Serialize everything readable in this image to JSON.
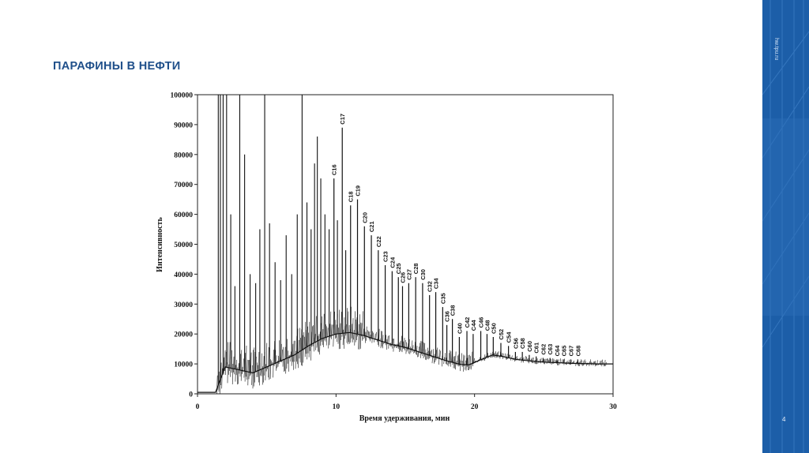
{
  "slide": {
    "title": "ПАРАФИНЫ В НЕФТИ",
    "site": "hw.tpu.ru",
    "page_number": "4",
    "accent_color": "#1c5ea8",
    "title_color": "#1f4f8a"
  },
  "chart_data": {
    "type": "line",
    "title": "",
    "xlabel": "Время удерживания, мин",
    "ylabel": "Интенсивность",
    "xlim": [
      0,
      30
    ],
    "ylim": [
      0,
      100000
    ],
    "x_ticks": [
      "0",
      "10",
      "20",
      "30"
    ],
    "y_ticks": [
      "0",
      "10000",
      "20000",
      "30000",
      "40000",
      "50000",
      "60000",
      "70000",
      "80000",
      "90000",
      "100000"
    ],
    "grid": false,
    "line_color": "#111111",
    "baseline": [
      {
        "x": 0,
        "y": 500
      },
      {
        "x": 1.3,
        "y": 500
      },
      {
        "x": 2,
        "y": 9000
      },
      {
        "x": 3,
        "y": 8000
      },
      {
        "x": 4,
        "y": 7000
      },
      {
        "x": 5,
        "y": 9000
      },
      {
        "x": 6,
        "y": 11000
      },
      {
        "x": 7,
        "y": 13000
      },
      {
        "x": 8,
        "y": 16000
      },
      {
        "x": 9,
        "y": 18500
      },
      {
        "x": 10,
        "y": 20000
      },
      {
        "x": 11,
        "y": 20500
      },
      {
        "x": 12,
        "y": 19500
      },
      {
        "x": 13,
        "y": 18000
      },
      {
        "x": 14,
        "y": 16500
      },
      {
        "x": 15,
        "y": 15500
      },
      {
        "x": 16,
        "y": 14000
      },
      {
        "x": 17,
        "y": 12500
      },
      {
        "x": 18,
        "y": 11000
      },
      {
        "x": 19,
        "y": 9800
      },
      {
        "x": 19.6,
        "y": 9700
      },
      {
        "x": 20.5,
        "y": 11500
      },
      {
        "x": 21.3,
        "y": 13000
      },
      {
        "x": 22,
        "y": 12500
      },
      {
        "x": 23,
        "y": 11500
      },
      {
        "x": 24,
        "y": 11000
      },
      {
        "x": 25,
        "y": 10600
      },
      {
        "x": 26,
        "y": 10400
      },
      {
        "x": 27,
        "y": 10200
      },
      {
        "x": 28,
        "y": 10100
      },
      {
        "x": 29,
        "y": 10000
      },
      {
        "x": 30,
        "y": 10000
      }
    ],
    "unlabeled_peaks": [
      {
        "x": 1.5,
        "y": 100000
      },
      {
        "x": 1.65,
        "y": 100000
      },
      {
        "x": 1.85,
        "y": 100000
      },
      {
        "x": 2.1,
        "y": 100000
      },
      {
        "x": 2.4,
        "y": 60000
      },
      {
        "x": 2.7,
        "y": 36000
      },
      {
        "x": 3.05,
        "y": 100000
      },
      {
        "x": 3.4,
        "y": 80000
      },
      {
        "x": 3.8,
        "y": 40000
      },
      {
        "x": 4.2,
        "y": 37000
      },
      {
        "x": 4.5,
        "y": 55000
      },
      {
        "x": 4.85,
        "y": 100000
      },
      {
        "x": 5.2,
        "y": 57000
      },
      {
        "x": 5.6,
        "y": 44000
      },
      {
        "x": 6.0,
        "y": 38000
      },
      {
        "x": 6.4,
        "y": 53000
      },
      {
        "x": 6.8,
        "y": 40000
      },
      {
        "x": 7.2,
        "y": 60000
      },
      {
        "x": 7.55,
        "y": 100000
      },
      {
        "x": 7.9,
        "y": 64000
      },
      {
        "x": 8.2,
        "y": 55000
      },
      {
        "x": 8.45,
        "y": 77000
      },
      {
        "x": 8.65,
        "y": 86000
      },
      {
        "x": 8.9,
        "y": 72000
      },
      {
        "x": 9.2,
        "y": 60000
      },
      {
        "x": 9.5,
        "y": 55000
      },
      {
        "x": 10.1,
        "y": 58000
      },
      {
        "x": 10.7,
        "y": 48000
      }
    ],
    "labeled_peaks": [
      {
        "label": "C16",
        "x": 9.85,
        "y": 72000
      },
      {
        "label": "C17",
        "x": 10.45,
        "y": 89000
      },
      {
        "label": "C18",
        "x": 11.05,
        "y": 63000
      },
      {
        "label": "C19",
        "x": 11.55,
        "y": 65000
      },
      {
        "label": "C20",
        "x": 12.05,
        "y": 56000
      },
      {
        "label": "C21",
        "x": 12.55,
        "y": 53000
      },
      {
        "label": "C22",
        "x": 13.05,
        "y": 48000
      },
      {
        "label": "C23",
        "x": 13.55,
        "y": 43000
      },
      {
        "label": "C24",
        "x": 14.05,
        "y": 41000
      },
      {
        "label": "C25",
        "x": 14.5,
        "y": 39000
      },
      {
        "label": "C26",
        "x": 14.8,
        "y": 36000
      },
      {
        "label": "C27",
        "x": 15.25,
        "y": 37000
      },
      {
        "label": "C28",
        "x": 15.75,
        "y": 39000
      },
      {
        "label": "C30",
        "x": 16.25,
        "y": 37000
      },
      {
        "label": "C32",
        "x": 16.75,
        "y": 33000
      },
      {
        "label": "C34",
        "x": 17.2,
        "y": 34000
      },
      {
        "label": "C35",
        "x": 17.7,
        "y": 29000
      },
      {
        "label": "C36",
        "x": 18.0,
        "y": 23000
      },
      {
        "label": "C38",
        "x": 18.4,
        "y": 25000
      },
      {
        "label": "C40",
        "x": 18.9,
        "y": 19000
      },
      {
        "label": "C42",
        "x": 19.45,
        "y": 21000
      },
      {
        "label": "C44",
        "x": 19.9,
        "y": 20000
      },
      {
        "label": "C46",
        "x": 20.45,
        "y": 21000
      },
      {
        "label": "C48",
        "x": 20.9,
        "y": 20000
      },
      {
        "label": "C50",
        "x": 21.35,
        "y": 19000
      },
      {
        "label": "C52",
        "x": 21.9,
        "y": 17000
      },
      {
        "label": "C54",
        "x": 22.45,
        "y": 16000
      },
      {
        "label": "C56",
        "x": 22.95,
        "y": 14000
      },
      {
        "label": "C58",
        "x": 23.45,
        "y": 14000
      },
      {
        "label": "C60",
        "x": 23.95,
        "y": 13000
      },
      {
        "label": "C61",
        "x": 24.45,
        "y": 12500
      },
      {
        "label": "C62",
        "x": 24.95,
        "y": 12000
      },
      {
        "label": "C63",
        "x": 25.45,
        "y": 12000
      },
      {
        "label": "C64",
        "x": 25.95,
        "y": 11500
      },
      {
        "label": "C65",
        "x": 26.45,
        "y": 11500
      },
      {
        "label": "C67",
        "x": 26.95,
        "y": 11500
      },
      {
        "label": "C68",
        "x": 27.45,
        "y": 11500
      }
    ]
  }
}
